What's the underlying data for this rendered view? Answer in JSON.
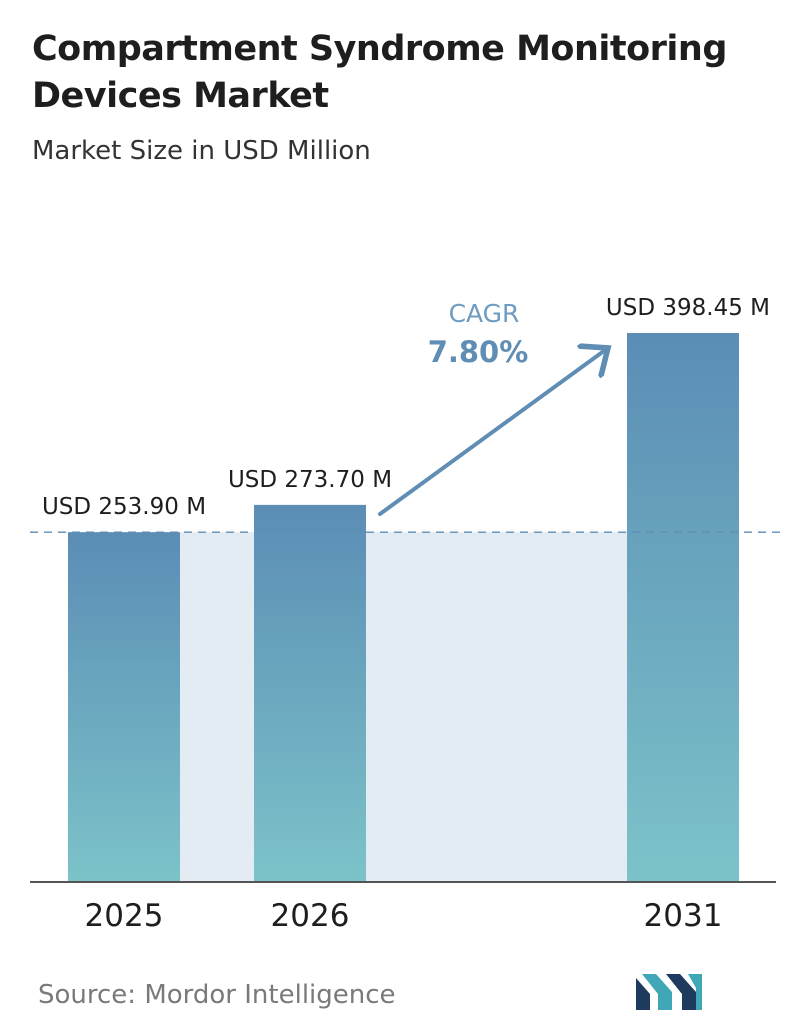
{
  "title": "Compartment Syndrome Monitoring Devices Market",
  "subtitle": "Market Size in USD Million",
  "source": "Source: Mordor Intelligence",
  "colors": {
    "bar_top": "#5b8db5",
    "bar_bottom": "#7cc3c9",
    "band": "#e3ebf3",
    "arrow": "#5f8db4",
    "cagr_label": "#6f9cc0",
    "cagr_value": "#5f8db4",
    "dashed_line": "#5f8db4",
    "axis": "#555555",
    "logo_dark": "#1f3a5f",
    "logo_teal": "#3fa7b5"
  },
  "cagr": {
    "label": "CAGR",
    "value": "7.80%"
  },
  "logo_icon": "mordor-intelligence-logo-icon",
  "chart_data": {
    "type": "bar",
    "categories": [
      "2025",
      "2026",
      "2031"
    ],
    "values": [
      253.9,
      273.7,
      398.45
    ],
    "data_labels": [
      "USD 253.90 M",
      "USD 273.70 M",
      "USD 398.45 M"
    ],
    "xlabel": "",
    "ylabel": "",
    "grid": false,
    "reference_line": "dashed line at 2025 value"
  }
}
